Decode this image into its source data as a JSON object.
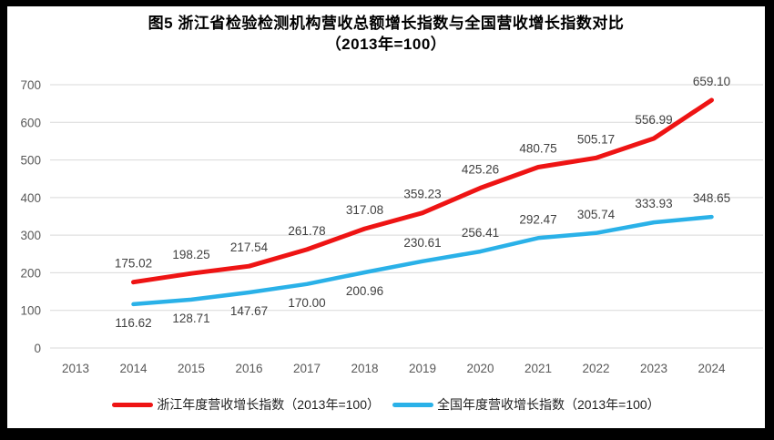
{
  "header": {
    "title_line1": "图5  浙江省检验检测机构营收总额增长指数与全国营收增长指数对比",
    "title_line2": "（2013年=100）"
  },
  "colors": {
    "zhejiang_line": "#ee1414",
    "national_line": "#2ab1e8",
    "grid": "#d9d9d9",
    "axis_text": "#595959",
    "value_label": "#404040"
  },
  "chart_data": {
    "type": "line",
    "title": "图5 浙江省检验检测机构营收总额增长指数与全国营收增长指数对比（2013年=100）",
    "x": [
      "2013",
      "2014",
      "2015",
      "2016",
      "2017",
      "2018",
      "2019",
      "2020",
      "2021",
      "2022",
      "2023",
      "2024"
    ],
    "series": [
      {
        "name": "浙江年度营收增长指数（2013年=100）",
        "color": "#ee1414",
        "stroke_width": 5,
        "label_position": "above",
        "values": [
          null,
          175.02,
          198.25,
          217.54,
          261.78,
          317.08,
          359.23,
          425.26,
          480.75,
          505.17,
          556.99,
          659.1
        ]
      },
      {
        "name": "全国年度营收增长指数（2013年=100）",
        "color": "#2ab1e8",
        "stroke_width": 4.5,
        "label_position": "above",
        "labels_below_through": "2018",
        "values": [
          null,
          116.62,
          128.71,
          147.67,
          170.0,
          200.96,
          230.61,
          256.41,
          292.47,
          305.74,
          333.93,
          348.65
        ]
      }
    ],
    "ylim": [
      0,
      700
    ],
    "ytick_step": 100,
    "value_label_format": "0.00",
    "grid": true,
    "legend_position": "bottom"
  }
}
